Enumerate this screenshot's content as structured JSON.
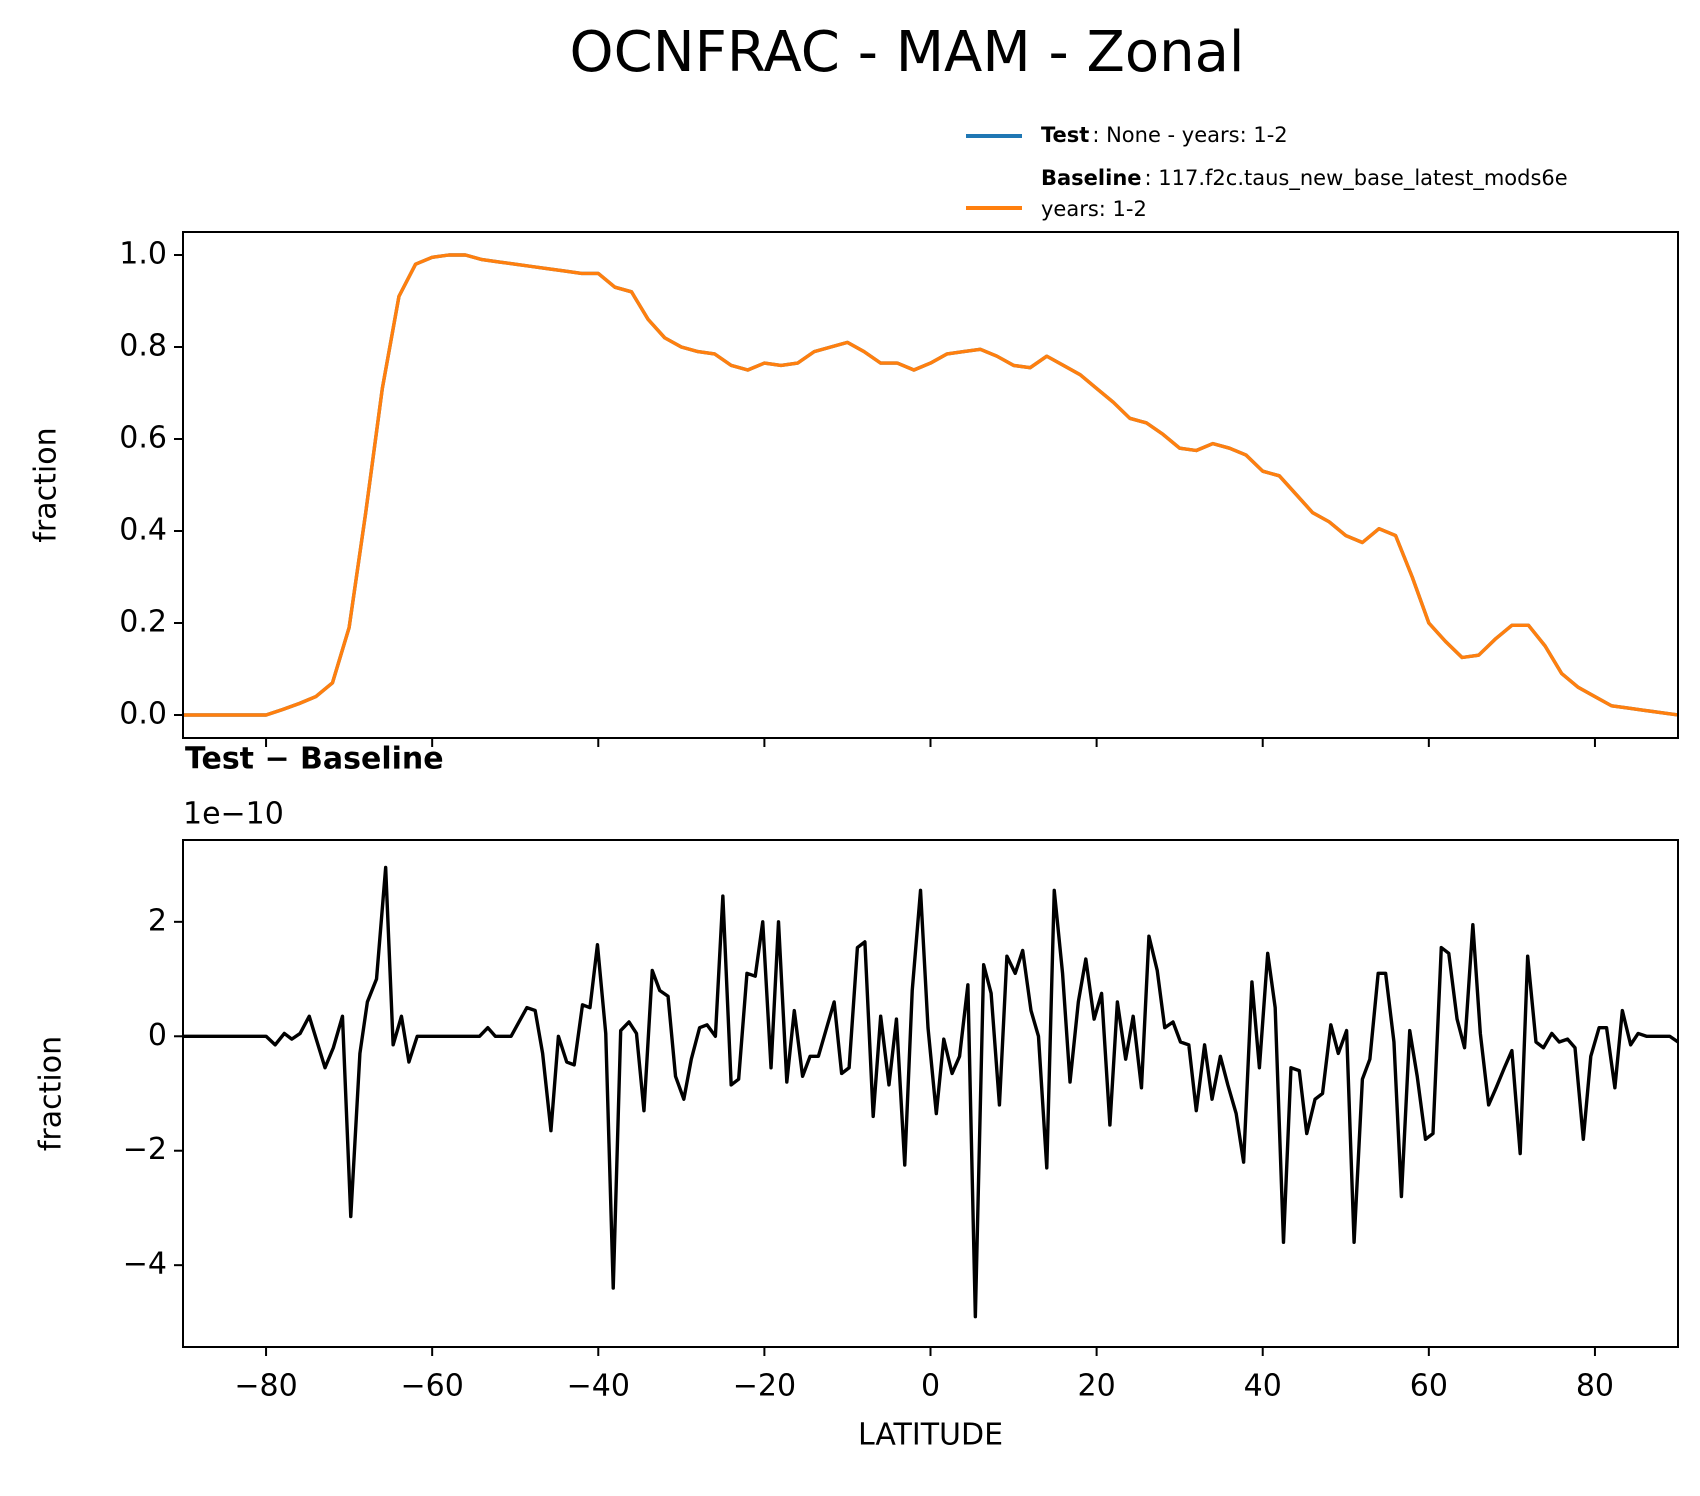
{
  "title": "OCNFRAC - MAM - Zonal",
  "chart_data": [
    {
      "type": "line",
      "ylabel": "fraction",
      "x": [
        -90,
        -88,
        -86,
        -84,
        -82,
        -80,
        -78,
        -76,
        -74,
        -72,
        -70,
        -68,
        -66,
        -64,
        -62,
        -60,
        -58,
        -56,
        -54,
        -52,
        -50,
        -48,
        -46,
        -44,
        -42,
        -40,
        -38,
        -36,
        -34,
        -32,
        -30,
        -28,
        -26,
        -24,
        -22,
        -20,
        -18,
        -16,
        -14,
        -12,
        -10,
        -8,
        -6,
        -4,
        -2,
        0,
        2,
        4,
        6,
        8,
        10,
        12,
        14,
        16,
        18,
        20,
        22,
        24,
        26,
        28,
        30,
        32,
        34,
        36,
        38,
        40,
        42,
        44,
        46,
        48,
        50,
        52,
        54,
        56,
        58,
        60,
        62,
        64,
        66,
        68,
        70,
        72,
        74,
        76,
        78,
        80,
        82,
        84,
        86,
        88,
        90
      ],
      "xlim": [
        -90,
        90
      ],
      "xticks": [
        {
          "value": -80,
          "label": "−80"
        },
        {
          "value": -60,
          "label": "−60"
        },
        {
          "value": -40,
          "label": "−40"
        },
        {
          "value": -20,
          "label": "−20"
        },
        0,
        20,
        40,
        60,
        80
      ],
      "xticklabels": false,
      "ylim": [
        -0.05,
        1.05
      ],
      "yticks": [
        {
          "value": 0,
          "label": "0.0"
        },
        0.2,
        0.4,
        0.6,
        0.8,
        {
          "value": 1,
          "label": "1.0"
        }
      ],
      "legend": "upper right",
      "series": [
        {
          "name": "Test",
          "label": [
            ": None - years: 1-2"
          ],
          "color": "#1f77b4",
          "values": [
            0,
            0,
            0,
            0,
            0,
            0,
            0.012,
            0.025,
            0.04,
            0.07,
            0.19,
            0.44,
            0.71,
            0.91,
            0.98,
            0.995,
            1.0,
            1.0,
            0.99,
            0.985,
            0.98,
            0.975,
            0.97,
            0.965,
            0.96,
            0.96,
            0.93,
            0.92,
            0.86,
            0.82,
            0.8,
            0.79,
            0.785,
            0.76,
            0.75,
            0.765,
            0.76,
            0.765,
            0.79,
            0.8,
            0.81,
            0.79,
            0.765,
            0.765,
            0.75,
            0.765,
            0.785,
            0.79,
            0.795,
            0.78,
            0.76,
            0.755,
            0.78,
            0.76,
            0.74,
            0.71,
            0.68,
            0.645,
            0.635,
            0.61,
            0.58,
            0.575,
            0.59,
            0.58,
            0.565,
            0.53,
            0.52,
            0.48,
            0.44,
            0.42,
            0.39,
            0.375,
            0.405,
            0.39,
            0.3,
            0.2,
            0.16,
            0.125,
            0.13,
            0.165,
            0.195,
            0.195,
            0.15,
            0.09,
            0.06,
            0.04,
            0.02,
            0.015,
            0.01,
            0.005,
            0.0
          ]
        },
        {
          "name": "Baseline",
          "label": [
            ": 117.f2c.taus_new_base_latest_mods6e",
            "years: 1-2"
          ],
          "color": "#ff7f0e",
          "values": [
            0,
            0,
            0,
            0,
            0,
            0,
            0.012,
            0.025,
            0.04,
            0.07,
            0.19,
            0.44,
            0.71,
            0.91,
            0.98,
            0.995,
            1.0,
            1.0,
            0.99,
            0.985,
            0.98,
            0.975,
            0.97,
            0.965,
            0.96,
            0.96,
            0.93,
            0.92,
            0.86,
            0.82,
            0.8,
            0.79,
            0.785,
            0.76,
            0.75,
            0.765,
            0.76,
            0.765,
            0.79,
            0.8,
            0.81,
            0.79,
            0.765,
            0.765,
            0.75,
            0.765,
            0.785,
            0.79,
            0.795,
            0.78,
            0.76,
            0.755,
            0.78,
            0.76,
            0.74,
            0.71,
            0.68,
            0.645,
            0.635,
            0.61,
            0.58,
            0.575,
            0.59,
            0.58,
            0.565,
            0.53,
            0.52,
            0.48,
            0.44,
            0.42,
            0.39,
            0.375,
            0.405,
            0.39,
            0.3,
            0.2,
            0.16,
            0.125,
            0.13,
            0.165,
            0.195,
            0.195,
            0.15,
            0.09,
            0.06,
            0.04,
            0.02,
            0.015,
            0.01,
            0.005,
            0.0
          ]
        }
      ]
    },
    {
      "type": "line",
      "title": "Test − Baseline",
      "offset_label": "1e−10",
      "ylabel": "fraction",
      "xlabel": "LATITUDE",
      "x": [
        -90,
        -80,
        -78.9,
        -77.8,
        -76.9,
        -75.9,
        -74.8,
        -72.9,
        -71.9,
        -70.8,
        -69.8,
        -68.7,
        -67.8,
        -66.7,
        -65.6,
        -64.7,
        -63.7,
        -62.8,
        -61.8,
        -54.3,
        -53.3,
        -52.4,
        -50.5,
        -48.6,
        -47.6,
        -46.7,
        -45.7,
        -44.8,
        -43.8,
        -42.9,
        -41.9,
        -41,
        -40.1,
        -39.1,
        -38.2,
        -37.3,
        -36.3,
        -35.4,
        -34.5,
        -33.5,
        -32.6,
        -31.6,
        -30.7,
        -29.7,
        -28.8,
        -27.8,
        -26.9,
        -25.9,
        -25,
        -24,
        -23.1,
        -22.1,
        -21.1,
        -20.2,
        -19.2,
        -18.3,
        -17.3,
        -16.4,
        -15.4,
        -14.5,
        -13.5,
        -12.6,
        -11.6,
        -10.7,
        -9.8,
        -8.8,
        -7.9,
        -6.9,
        -6,
        -5,
        -4.1,
        -3.1,
        -2.2,
        -1.2,
        -0.3,
        0.7,
        1.6,
        2.6,
        3.5,
        4.5,
        5.4,
        6.4,
        7.3,
        8.3,
        9.2,
        10.2,
        11.1,
        12.1,
        13,
        14,
        14.9,
        15.9,
        16.8,
        17.8,
        18.7,
        19.7,
        20.6,
        21.6,
        22.5,
        23.5,
        24.4,
        25.4,
        26.3,
        27.3,
        28.2,
        29.2,
        30.1,
        31.1,
        32,
        33,
        33.9,
        34.9,
        35.8,
        36.8,
        37.7,
        38.7,
        39.6,
        40.6,
        41.5,
        42.5,
        43.4,
        44.4,
        45.3,
        46.3,
        47.2,
        48.2,
        49.1,
        50.1,
        51,
        52,
        52.9,
        53.9,
        54.8,
        55.8,
        56.7,
        57.7,
        58.6,
        59.6,
        60.5,
        61.5,
        62.4,
        63.4,
        64.3,
        65.3,
        66.2,
        67.2,
        68.1,
        69.1,
        70,
        71,
        71.9,
        72.9,
        73.8,
        74.8,
        75.7,
        76.7,
        77.6,
        78.6,
        79.5,
        80.5,
        81.4,
        82.4,
        83.3,
        84.3,
        85.2,
        86.2,
        89,
        90
      ],
      "xlim": [
        -90,
        90
      ],
      "xticks": [
        {
          "value": -80,
          "label": "−80"
        },
        {
          "value": -60,
          "label": "−60"
        },
        {
          "value": -40,
          "label": "−40"
        },
        {
          "value": -20,
          "label": "−20"
        },
        0,
        20,
        40,
        60,
        80
      ],
      "ylim": [
        -5.43,
        3.43
      ],
      "yticks": [
        {
          "value": -4,
          "label": "−4"
        },
        {
          "value": -2,
          "label": "−2"
        },
        0,
        2
      ],
      "series": [
        {
          "color": "#000000",
          "values": [
            0,
            0,
            -0.15,
            0.05,
            -0.05,
            0.05,
            0.35,
            -0.55,
            -0.2,
            0.35,
            -3.15,
            -0.3,
            0.6,
            1.0,
            2.95,
            -0.15,
            0.35,
            -0.45,
            0,
            0,
            0.15,
            0,
            0,
            0.5,
            0.45,
            -0.3,
            -1.65,
            0,
            -0.45,
            -0.5,
            0.55,
            0.5,
            1.6,
            0.05,
            -4.4,
            0.1,
            0.25,
            0.05,
            -1.3,
            1.15,
            0.8,
            0.7,
            -0.7,
            -1.1,
            -0.4,
            0.15,
            0.2,
            0,
            2.45,
            -0.85,
            -0.75,
            1.1,
            1.05,
            2,
            -0.55,
            2,
            -0.8,
            0.45,
            -0.7,
            -0.35,
            -0.35,
            0.1,
            0.6,
            -0.65,
            -0.55,
            1.55,
            1.65,
            -1.4,
            0.35,
            -0.85,
            0.3,
            -2.25,
            0.8,
            2.55,
            0.15,
            -1.35,
            -0.05,
            -0.65,
            -0.35,
            0.9,
            -4.9,
            1.25,
            0.75,
            -1.2,
            1.4,
            1.1,
            1.5,
            0.45,
            0,
            -2.3,
            2.55,
            1.1,
            -0.8,
            0.6,
            1.35,
            0.3,
            0.75,
            -1.55,
            0.6,
            -0.4,
            0.35,
            -0.9,
            1.75,
            1.15,
            0.15,
            0.25,
            -0.1,
            -0.15,
            -1.3,
            -0.15,
            -1.1,
            -0.35,
            -0.85,
            -1.35,
            -2.2,
            0.95,
            -0.55,
            1.45,
            0.5,
            -3.6,
            -0.55,
            -0.6,
            -1.7,
            -1.1,
            -1.0,
            0.2,
            -0.3,
            0.1,
            -3.6,
            -0.75,
            -0.4,
            1.1,
            1.1,
            -0.1,
            -2.8,
            0.1,
            -0.7,
            -1.8,
            -1.7,
            1.55,
            1.45,
            0.3,
            -0.2,
            1.95,
            0.05,
            -1.2,
            -0.9,
            -0.55,
            -0.25,
            -2.05,
            1.4,
            -0.1,
            -0.2,
            0.05,
            -0.1,
            -0.05,
            -0.2,
            -1.8,
            -0.35,
            0.15,
            0.15,
            -0.9,
            0.45,
            -0.15,
            0.05,
            0,
            0,
            -0.1
          ]
        }
      ]
    }
  ]
}
